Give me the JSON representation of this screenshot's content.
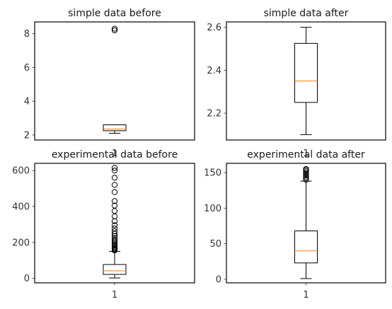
{
  "chart_data": [
    {
      "type": "box",
      "title": "simple data before",
      "xticklabels": [],
      "yticks": [
        2,
        4,
        6,
        8
      ],
      "ylim": [
        1.7,
        8.7
      ],
      "box": {
        "whislo": 2.1,
        "q1": 2.25,
        "med": 2.35,
        "q3": 2.6,
        "whishi": 2.6
      },
      "fliers": [
        8.2,
        8.3
      ],
      "colors": {
        "median": "#ff7f0e",
        "box": "#000000"
      }
    },
    {
      "type": "box",
      "title": "simple data after",
      "xticklabels": [],
      "yticks": [
        2.2,
        2.4,
        2.6
      ],
      "ylim": [
        2.075,
        2.625
      ],
      "box": {
        "whislo": 2.1,
        "q1": 2.25,
        "med": 2.35,
        "q3": 2.525,
        "whishi": 2.6
      },
      "fliers": [],
      "colors": {
        "median": "#ff7f0e",
        "box": "#000000"
      }
    },
    {
      "type": "box",
      "title": "experimental data before",
      "overlay_label": "1",
      "xticklabels": [
        "1"
      ],
      "yticks": [
        0,
        200,
        400,
        600
      ],
      "ylim": [
        -25,
        640
      ],
      "box": {
        "whislo": 2,
        "q1": 22,
        "med": 42,
        "q3": 77,
        "whishi": 150
      },
      "fliers": [
        155,
        160,
        165,
        170,
        176,
        183,
        190,
        198,
        206,
        215,
        225,
        236,
        248,
        262,
        278,
        296,
        318,
        345,
        375,
        405,
        430,
        480,
        520,
        560,
        600,
        615
      ],
      "colors": {
        "median": "#ff7f0e",
        "box": "#000000"
      }
    },
    {
      "type": "box",
      "title": "experimental data after",
      "overlay_label": "1",
      "xticklabels": [
        "1"
      ],
      "yticks": [
        0,
        50,
        100,
        150
      ],
      "ylim": [
        -5,
        163
      ],
      "box": {
        "whislo": 1,
        "q1": 23,
        "med": 40,
        "q3": 68,
        "whishi": 138
      },
      "fliers": [
        140,
        142,
        144,
        146,
        148,
        150,
        152,
        154,
        155
      ],
      "colors": {
        "median": "#ff7f0e",
        "box": "#000000"
      }
    }
  ]
}
